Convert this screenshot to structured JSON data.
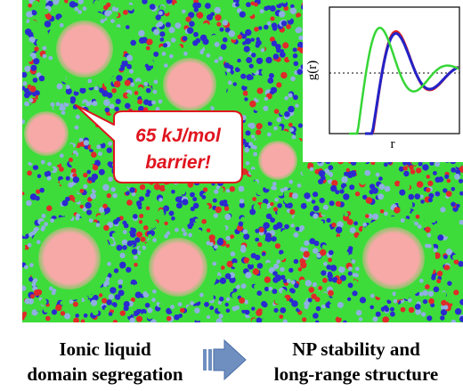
{
  "callout": {
    "lines": [
      "65 kJ/mol",
      "barrier!"
    ]
  },
  "inset": {
    "y_label": "g(r)",
    "x_label": "r"
  },
  "caption": {
    "left": [
      "Ionic liquid",
      "domain segregation"
    ],
    "right": [
      "NP stability and",
      "long-range structure"
    ]
  }
}
